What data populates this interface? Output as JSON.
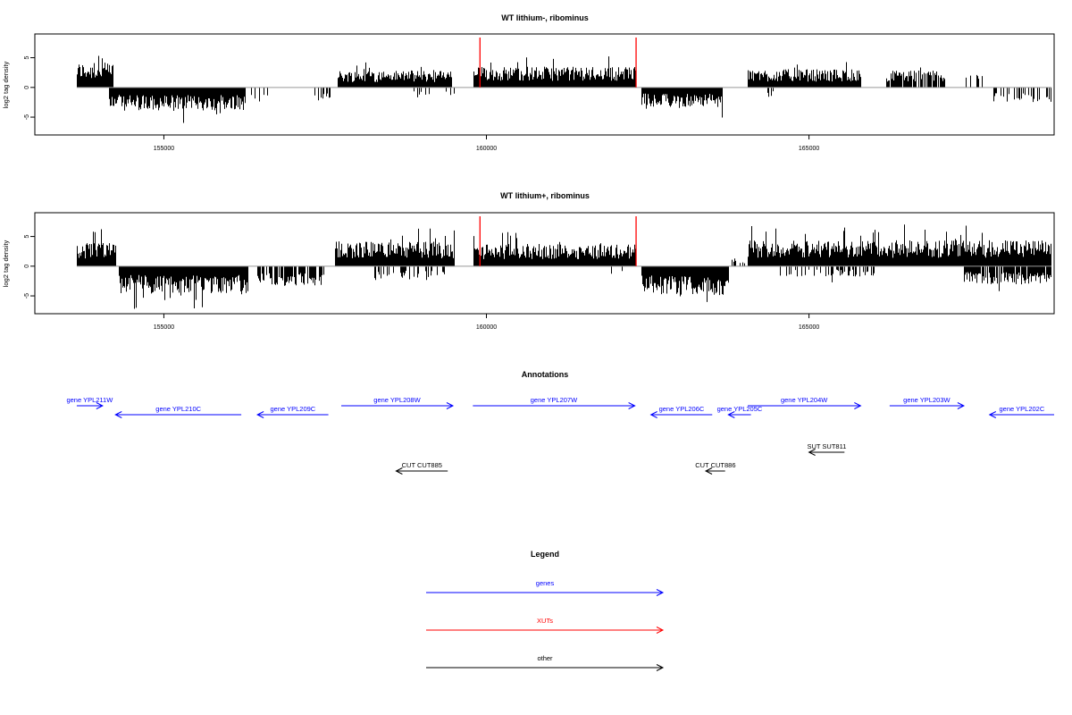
{
  "chart_data": [
    {
      "type": "bar",
      "title": "WT lithium-, ribominus",
      "ylabel": "log2 tag density",
      "xlim": [
        153000,
        168800
      ],
      "ylim": [
        -8,
        9
      ],
      "xticks": [
        155000,
        160000,
        165000
      ],
      "xtick_labels": [
        "155000",
        "160000",
        "165000"
      ],
      "yticks": [
        -5,
        0,
        5
      ],
      "ytick_labels": [
        "-5",
        "0",
        "5"
      ],
      "grid": false,
      "highlight_positions": [
        159900,
        162320
      ],
      "segments": [
        {
          "x0": 153650,
          "x1": 154200,
          "sign": 1,
          "amp": 3.8,
          "density": 1
        },
        {
          "x0": 154150,
          "x1": 156250,
          "sign": -1,
          "amp": 3.6,
          "density": 1
        },
        {
          "x0": 156350,
          "x1": 156600,
          "sign": -1,
          "amp": 2.2,
          "density": 0.4
        },
        {
          "x0": 157300,
          "x1": 157600,
          "sign": -1,
          "amp": 2.0,
          "density": 0.4
        },
        {
          "x0": 157700,
          "x1": 159450,
          "sign": 1,
          "amp": 2.6,
          "density": 1
        },
        {
          "x0": 158800,
          "x1": 159500,
          "sign": -1,
          "amp": 1.6,
          "density": 0.2
        },
        {
          "x0": 159800,
          "x1": 162300,
          "sign": 1,
          "amp": 3.2,
          "density": 1
        },
        {
          "x0": 162400,
          "x1": 163650,
          "sign": -1,
          "amp": 3.0,
          "density": 1
        },
        {
          "x0": 164050,
          "x1": 165800,
          "sign": 1,
          "amp": 2.8,
          "density": 1
        },
        {
          "x0": 164300,
          "x1": 164500,
          "sign": -1,
          "amp": 1.5,
          "density": 0.3
        },
        {
          "x0": 166200,
          "x1": 167100,
          "sign": 1,
          "amp": 2.6,
          "density": 0.9
        },
        {
          "x0": 167400,
          "x1": 167700,
          "sign": 1,
          "amp": 2.0,
          "density": 0.4
        },
        {
          "x0": 167850,
          "x1": 168750,
          "sign": -1,
          "amp": 2.3,
          "density": 0.4
        }
      ]
    },
    {
      "type": "bar",
      "title": "WT lithium+, ribominus",
      "ylabel": "log2 tag density",
      "xlim": [
        153000,
        168800
      ],
      "ylim": [
        -8,
        9
      ],
      "xticks": [
        155000,
        160000,
        165000
      ],
      "xtick_labels": [
        "155000",
        "160000",
        "165000"
      ],
      "yticks": [
        -5,
        0,
        5
      ],
      "ytick_labels": [
        "-5",
        "0",
        "5"
      ],
      "grid": false,
      "highlight_positions": [
        159900,
        162320
      ],
      "segments": [
        {
          "x0": 153650,
          "x1": 154250,
          "sign": 1,
          "amp": 3.6,
          "density": 1
        },
        {
          "x0": 154300,
          "x1": 156300,
          "sign": -1,
          "amp": 4.2,
          "density": 1
        },
        {
          "x0": 156400,
          "x1": 157500,
          "sign": -1,
          "amp": 3.0,
          "density": 0.7
        },
        {
          "x0": 157650,
          "x1": 159500,
          "sign": 1,
          "amp": 3.8,
          "density": 1
        },
        {
          "x0": 158200,
          "x1": 159400,
          "sign": -1,
          "amp": 2.2,
          "density": 0.3
        },
        {
          "x0": 159800,
          "x1": 162300,
          "sign": 1,
          "amp": 3.4,
          "density": 1
        },
        {
          "x0": 161900,
          "x1": 162100,
          "sign": -1,
          "amp": 2.0,
          "density": 0.3
        },
        {
          "x0": 162400,
          "x1": 163750,
          "sign": -1,
          "amp": 4.5,
          "density": 1
        },
        {
          "x0": 163800,
          "x1": 164050,
          "sign": 1,
          "amp": 1.0,
          "density": 0.3
        },
        {
          "x0": 164050,
          "x1": 168750,
          "sign": 1,
          "amp": 4.0,
          "density": 1
        },
        {
          "x0": 164500,
          "x1": 166000,
          "sign": -1,
          "amp": 1.6,
          "density": 0.25
        },
        {
          "x0": 167400,
          "x1": 168750,
          "sign": -1,
          "amp": 2.8,
          "density": 0.9
        }
      ]
    }
  ],
  "annotations": {
    "title": "Annotations",
    "features": [
      {
        "label": "gene YPL211W",
        "x0": 153650,
        "x1": 154050,
        "dir": "right",
        "row": 0,
        "color": "#0000ff"
      },
      {
        "label": "gene YPL210C",
        "x0": 154250,
        "x1": 156200,
        "dir": "left",
        "row": 1,
        "color": "#0000ff"
      },
      {
        "label": "gene YPL209C",
        "x0": 156450,
        "x1": 157550,
        "dir": "left",
        "row": 1,
        "color": "#0000ff"
      },
      {
        "label": "gene YPL208W",
        "x0": 157750,
        "x1": 159480,
        "dir": "right",
        "row": 0,
        "color": "#0000ff"
      },
      {
        "label": "gene YPL207W",
        "x0": 159790,
        "x1": 162300,
        "dir": "right",
        "row": 0,
        "color": "#0000ff"
      },
      {
        "label": "gene YPL206C",
        "x0": 162550,
        "x1": 163500,
        "dir": "left",
        "row": 1,
        "color": "#0000ff"
      },
      {
        "label": "gene YPL205C",
        "x0": 163750,
        "x1": 164100,
        "dir": "left",
        "row": 1,
        "color": "#0000ff"
      },
      {
        "label": "gene YPL204W",
        "x0": 164050,
        "x1": 165800,
        "dir": "right",
        "row": 0,
        "color": "#0000ff"
      },
      {
        "label": "gene YPL203W",
        "x0": 166250,
        "x1": 167400,
        "dir": "right",
        "row": 0,
        "color": "#0000ff"
      },
      {
        "label": "gene YPL202C",
        "x0": 167800,
        "x1": 168800,
        "dir": "left",
        "row": 1,
        "color": "#0000ff"
      },
      {
        "label": "SUT SUT811",
        "x0": 165000,
        "x1": 165550,
        "dir": "left",
        "row": 2,
        "color": "#000000"
      },
      {
        "label": "CUT CUT885",
        "x0": 158600,
        "x1": 159400,
        "dir": "left",
        "row": 3,
        "color": "#000000"
      },
      {
        "label": "CUT CUT886",
        "x0": 163400,
        "x1": 163700,
        "dir": "left",
        "row": 3,
        "color": "#000000"
      }
    ]
  },
  "legend": {
    "title": "Legend",
    "items": [
      {
        "label": "genes",
        "color": "#0000ff"
      },
      {
        "label": "XUTs",
        "color": "#ff0000"
      },
      {
        "label": "other",
        "color": "#000000"
      }
    ]
  }
}
